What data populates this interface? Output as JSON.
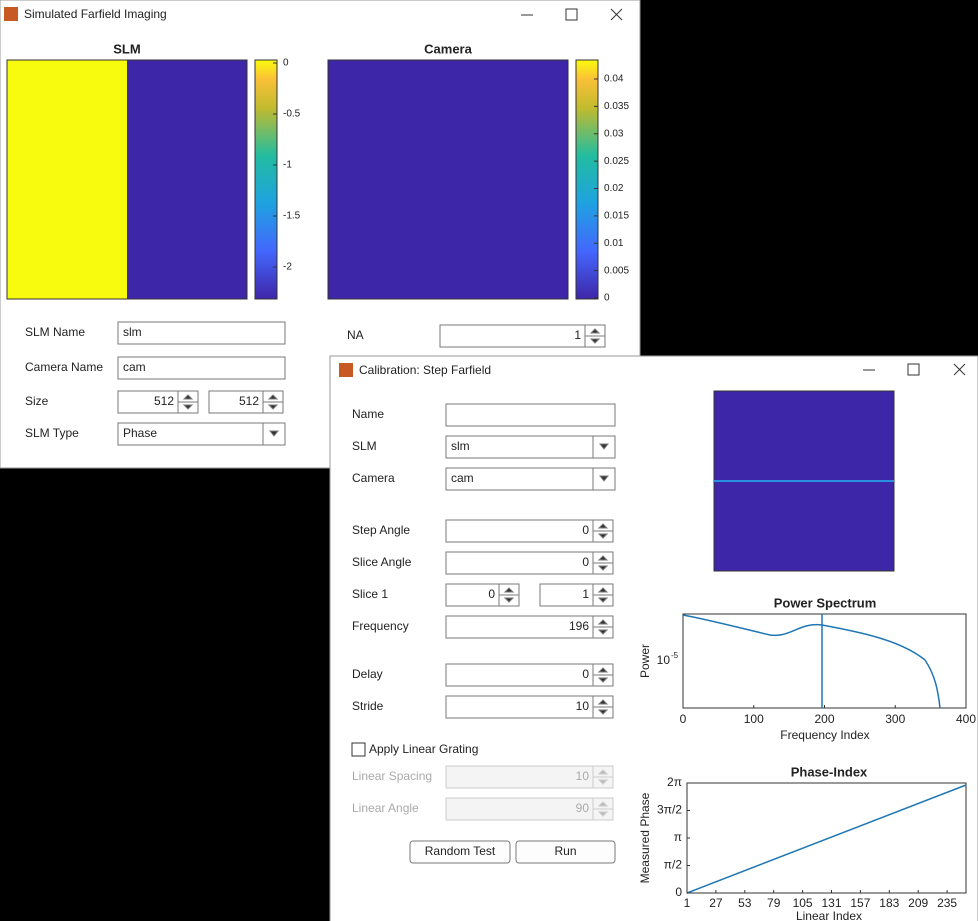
{
  "sim_window": {
    "title": "Simulated Farfield Imaging",
    "slm_plot": {
      "title": "SLM",
      "colorbar_ticks": [
        "0",
        "-0.5",
        "-1",
        "-1.5",
        "-2"
      ]
    },
    "camera_plot": {
      "title": "Camera",
      "colorbar_ticks": [
        "0.04",
        "0.035",
        "0.03",
        "0.025",
        "0.02",
        "0.015",
        "0.01",
        "0.005",
        "0"
      ]
    },
    "fields": [
      {
        "label": "SLM Name",
        "value": "slm"
      },
      {
        "label": "Camera Name",
        "value": "cam"
      },
      {
        "label": "Size",
        "value": "512",
        "value2": "512"
      },
      {
        "label": "SLM Type",
        "value": "Phase"
      }
    ],
    "na": {
      "label": "NA",
      "value": "1"
    }
  },
  "calib_window": {
    "title": "Calibration: Step Farfield",
    "fields": [
      {
        "label": "Name"
      },
      {
        "label": "SLM",
        "value": "slm"
      },
      {
        "label": "Camera",
        "value": "cam"
      },
      {
        "label": "Step Angle",
        "value": "0"
      },
      {
        "label": "Slice Angle",
        "value": "0"
      },
      {
        "label": "Slice 1",
        "value": "0",
        "value2": "1"
      },
      {
        "label": "Frequency",
        "value": "196"
      },
      {
        "label": "Delay",
        "value": "0"
      },
      {
        "label": "Stride",
        "value": "10"
      }
    ],
    "checkbox": "Apply Linear Grating",
    "disabled_fields": [
      {
        "label": "Linear Spacing",
        "value": "10"
      },
      {
        "label": "Linear Angle",
        "value": "90"
      }
    ],
    "buttons": [
      "Random Test",
      "Run"
    ],
    "power_plot": {
      "title": "Power Spectrum",
      "xlabel": "Frequency Index",
      "ylabel": "Power",
      "xticks": [
        "0",
        "100",
        "200",
        "300",
        "400"
      ],
      "ytick": "10",
      "ytick_exp": "-5"
    },
    "phase_plot": {
      "title": "Phase-Index",
      "xlabel": "Linear Index",
      "ylabel": "Measured Phase",
      "xticks": [
        "1",
        "27",
        "53",
        "79",
        "105",
        "131",
        "157",
        "183",
        "209",
        "235"
      ],
      "yticks": [
        "0",
        "π/2",
        "π",
        "3π/2",
        "2π"
      ]
    }
  }
}
